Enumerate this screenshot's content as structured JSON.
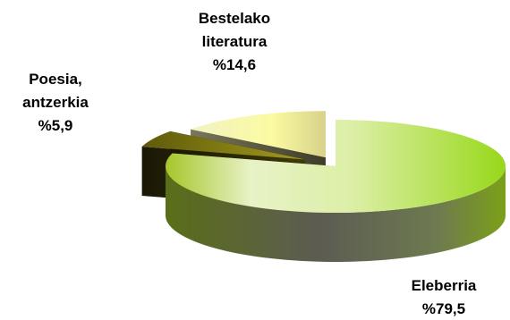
{
  "chart_data": {
    "type": "pie",
    "title": "",
    "slices": [
      {
        "name_lines": [
          "Eleberria"
        ],
        "value": 79.5,
        "value_label": "%79,5",
        "color": "#b5d83a",
        "exploded": false
      },
      {
        "name_lines": [
          "Poesia,",
          "antzerkia"
        ],
        "value": 5.9,
        "value_label": "%5,9",
        "color": "#6b6410",
        "exploded": true
      },
      {
        "name_lines": [
          "Bestelako",
          "literatura"
        ],
        "value": 14.6,
        "value_label": "%14,6",
        "color": "#e2e08a",
        "exploded": true
      }
    ],
    "legend": "none",
    "style": "3d-exploded"
  }
}
